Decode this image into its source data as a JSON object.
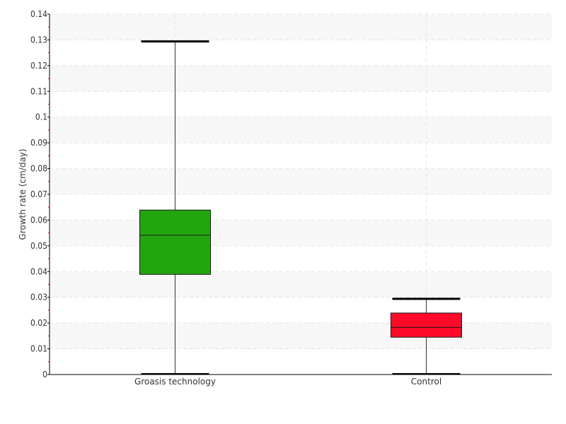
{
  "chart_data": {
    "type": "box",
    "ylabel": "Growth rate (cm/day)",
    "ylim": [
      0,
      0.14
    ],
    "yticks": [
      0,
      0.01,
      0.02,
      0.03,
      0.04,
      0.05,
      0.06,
      0.07,
      0.08,
      0.09,
      0.1,
      0.11,
      0.12,
      0.13,
      0.14
    ],
    "ytick_labels": [
      "0",
      "0.01",
      "0.02",
      "0.03",
      "0.04",
      "0.05",
      "0.06",
      "0.07",
      "0.08",
      "0.09",
      "0.1",
      "0.11",
      "0.12",
      "0.13",
      "0.14"
    ],
    "grid": true,
    "categories": [
      "Groasis technology",
      "Control"
    ],
    "boxes": [
      {
        "category": "Groasis technology",
        "min": 0.0,
        "q1": 0.0389,
        "median": 0.0541,
        "q3": 0.0639,
        "max": 0.1294,
        "color": "#22a60e"
      },
      {
        "category": "Control",
        "min": 0.0,
        "q1": 0.0145,
        "median": 0.0183,
        "q3": 0.0239,
        "max": 0.0294,
        "color": "#ff0b29"
      }
    ]
  }
}
